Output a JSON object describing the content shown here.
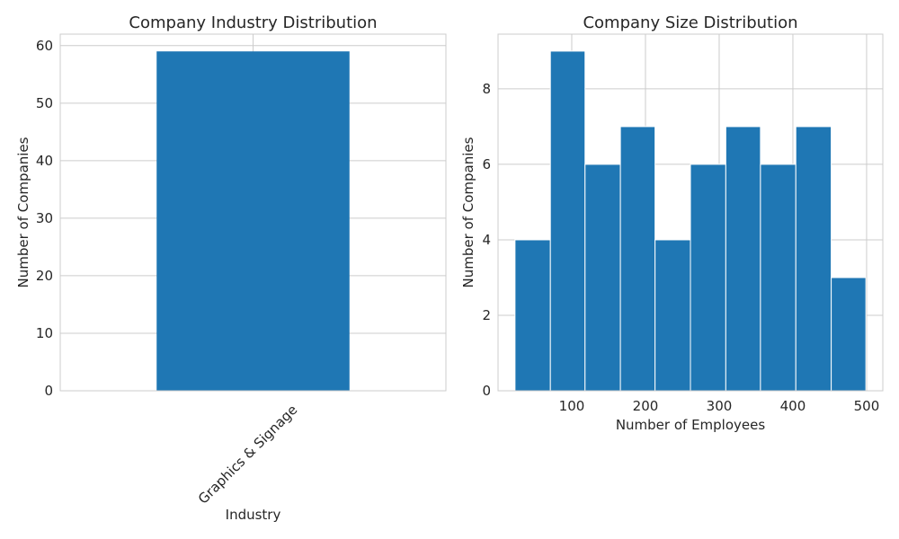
{
  "colors": {
    "bar": "#1f77b4",
    "grid": "#cccccc",
    "text": "#262626"
  },
  "chart_data": [
    {
      "type": "bar",
      "title": "Company Industry Distribution",
      "xlabel": "Industry",
      "ylabel": "Number of Companies",
      "categories": [
        "Graphics & Signage"
      ],
      "values": [
        59
      ],
      "ylim": [
        0,
        62
      ],
      "yticks": [
        0,
        10,
        20,
        30,
        40,
        50,
        60
      ],
      "grid": true,
      "legend": "none"
    },
    {
      "type": "bar",
      "title": "Company Size Distribution",
      "xlabel": "Number of Employees",
      "ylabel": "Number of Companies",
      "bin_edges": [
        23,
        71,
        118,
        166,
        213,
        261,
        309,
        356,
        404,
        452,
        499
      ],
      "values": [
        4,
        9,
        6,
        7,
        4,
        6,
        7,
        6,
        7,
        3
      ],
      "xlim": [
        0,
        522
      ],
      "ylim": [
        0,
        9.45
      ],
      "xticks": [
        100,
        200,
        300,
        400,
        500
      ],
      "yticks": [
        0,
        2,
        4,
        6,
        8
      ],
      "grid": true,
      "legend": "none"
    }
  ]
}
